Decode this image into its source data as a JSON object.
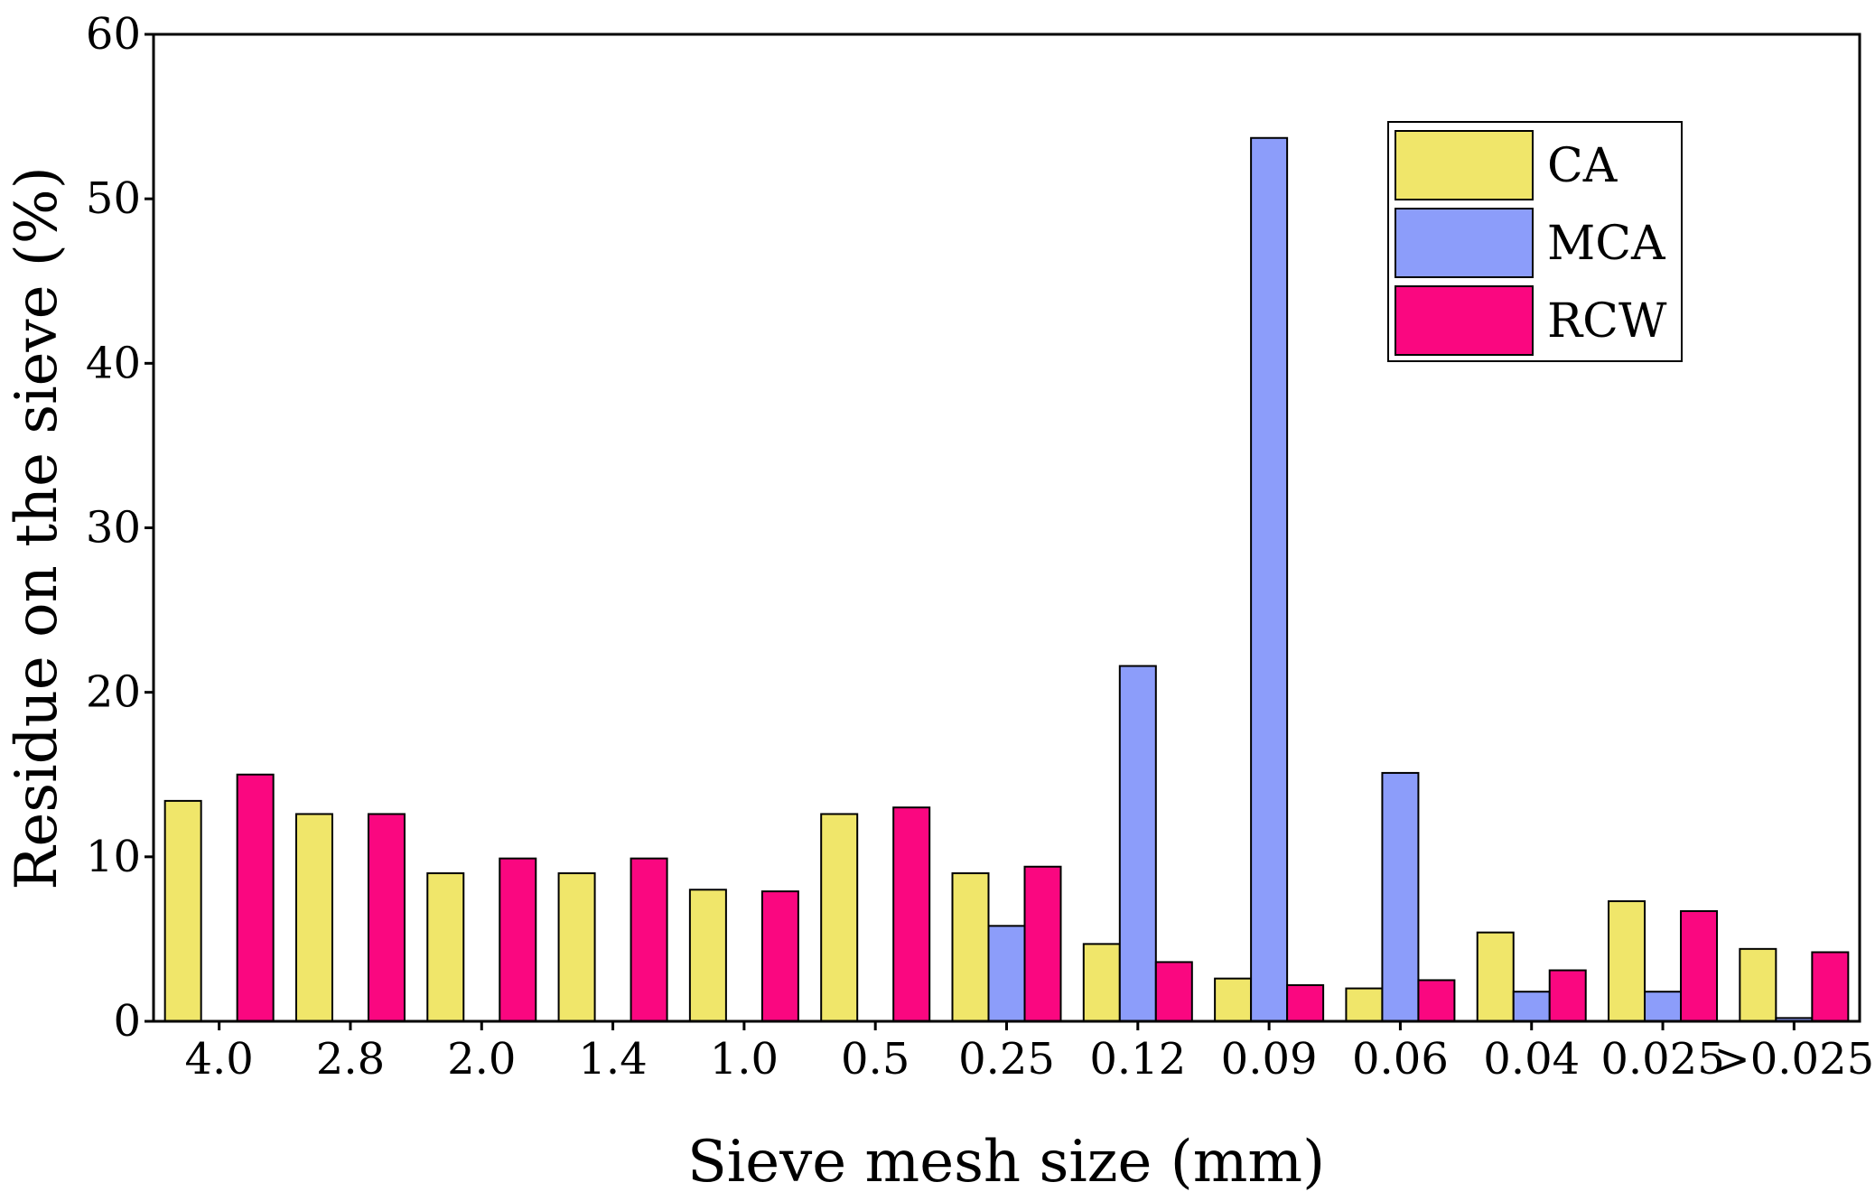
{
  "chart_data": {
    "type": "bar",
    "title": "",
    "xlabel": "Sieve mesh size (mm)",
    "ylabel": "Residue on the sieve (%)",
    "ylim": [
      0,
      60
    ],
    "yticks": [
      "0",
      "10",
      "20",
      "30",
      "40",
      "50",
      "60"
    ],
    "categories": [
      "4.0",
      "2.8",
      "2.0",
      "1.4",
      "1.0",
      "0.5",
      "0.25",
      "0.12",
      "0.09",
      "0.06",
      "0.04",
      "0.025",
      ">0.025"
    ],
    "series": [
      {
        "name": "CA",
        "color": "#f0e66a",
        "values": [
          13.4,
          12.6,
          9.0,
          9.0,
          8.0,
          12.6,
          9.0,
          4.7,
          2.6,
          2.0,
          5.4,
          7.3,
          4.4
        ]
      },
      {
        "name": "MCA",
        "color": "#8c9dfa",
        "values": [
          0,
          0,
          0,
          0,
          0,
          0,
          5.8,
          21.6,
          53.7,
          15.1,
          1.8,
          1.8,
          0.2
        ]
      },
      {
        "name": "RCW",
        "color": "#fa0780",
        "values": [
          15.0,
          12.6,
          9.9,
          9.9,
          7.9,
          13.0,
          9.4,
          3.6,
          2.2,
          2.5,
          3.1,
          6.7,
          4.2
        ]
      }
    ],
    "grid": false,
    "legend_position": "top-right"
  }
}
